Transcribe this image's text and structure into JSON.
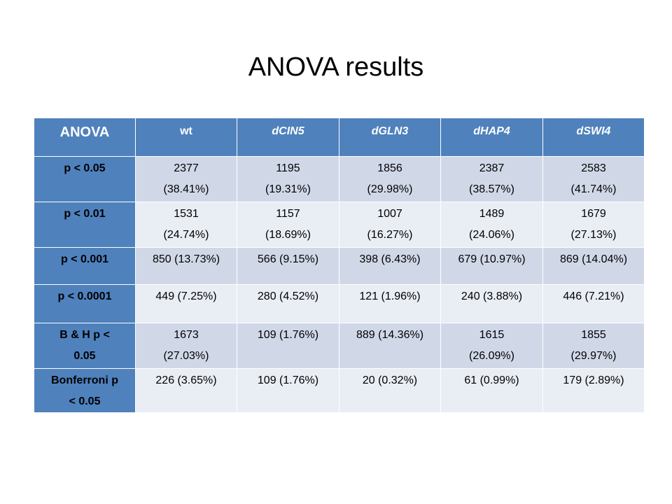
{
  "slide": {
    "title": "ANOVA results"
  },
  "table": {
    "header": {
      "corner": "ANOVA",
      "columns": [
        "wt",
        "dCIN5",
        "dGLN3",
        "dHAP4",
        "dSWI4"
      ]
    },
    "rows": [
      {
        "label": "p < 0.05",
        "cells": [
          {
            "l1": "2377",
            "l2": "(38.41%)"
          },
          {
            "l1": "1195",
            "l2": "(19.31%)"
          },
          {
            "l1": "1856",
            "l2": "(29.98%)"
          },
          {
            "l1": "2387",
            "l2": "(38.57%)"
          },
          {
            "l1": "2583",
            "l2": "(41.74%)"
          }
        ]
      },
      {
        "label": "p < 0.01",
        "cells": [
          {
            "l1": "1531",
            "l2": "(24.74%)"
          },
          {
            "l1": "1157",
            "l2": "(18.69%)"
          },
          {
            "l1": "1007",
            "l2": "(16.27%)"
          },
          {
            "l1": "1489",
            "l2": "(24.06%)"
          },
          {
            "l1": "1679",
            "l2": "(27.13%)"
          }
        ]
      },
      {
        "label": "p < 0.001",
        "cells": [
          {
            "l1": "850 (13.73%)",
            "l2": ""
          },
          {
            "l1": "566 (9.15%)",
            "l2": ""
          },
          {
            "l1": "398 (6.43%)",
            "l2": ""
          },
          {
            "l1": "679 (10.97%)",
            "l2": ""
          },
          {
            "l1": "869 (14.04%)",
            "l2": ""
          }
        ]
      },
      {
        "label": "p < 0.0001",
        "cells": [
          {
            "l1": "449 (7.25%)",
            "l2": ""
          },
          {
            "l1": "280 (4.52%)",
            "l2": ""
          },
          {
            "l1": "121 (1.96%)",
            "l2": ""
          },
          {
            "l1": "240 (3.88%)",
            "l2": ""
          },
          {
            "l1": "446 (7.21%)",
            "l2": ""
          }
        ]
      },
      {
        "label_l1": "B & H p <",
        "label_l2": "0.05",
        "cells": [
          {
            "l1": "1673",
            "l2": "(27.03%)"
          },
          {
            "l1": "109 (1.76%)",
            "l2": ""
          },
          {
            "l1": "889 (14.36%)",
            "l2": ""
          },
          {
            "l1": "1615",
            "l2": "(26.09%)"
          },
          {
            "l1": "1855",
            "l2": "(29.97%)"
          }
        ]
      },
      {
        "label_l1": "Bonferroni p",
        "label_l2": "< 0.05",
        "cells": [
          {
            "l1": "226 (3.65%)",
            "l2": ""
          },
          {
            "l1": "109  (1.76%)",
            "l2": ""
          },
          {
            "l1": "20 (0.32%)",
            "l2": ""
          },
          {
            "l1": "61 (0.99%)",
            "l2": ""
          },
          {
            "l1": "179 (2.89%)",
            "l2": ""
          }
        ]
      }
    ]
  },
  "colors": {
    "header_fill": "#4f81bd",
    "row_band_dark": "#d0d8e8",
    "row_band_light": "#e9edf4"
  }
}
